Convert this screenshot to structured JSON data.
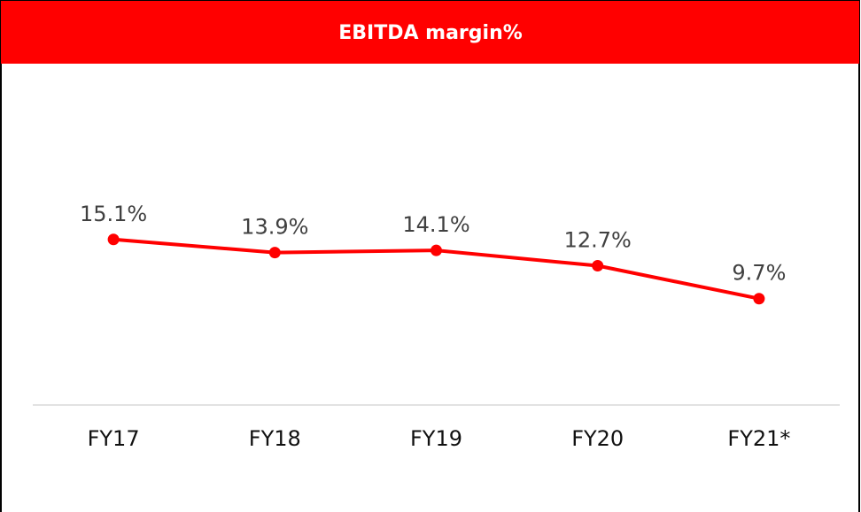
{
  "chart_data": {
    "type": "line",
    "title": "EBITDA margin%",
    "categories": [
      "FY17",
      "FY18",
      "FY19",
      "FY20",
      "FY21*"
    ],
    "values": [
      15.1,
      13.9,
      14.1,
      12.7,
      9.7
    ],
    "value_labels": [
      "15.1%",
      "13.9%",
      "14.1%",
      "12.7%",
      "9.7%"
    ],
    "color": "#ff0000",
    "ylim": [
      0,
      20
    ]
  }
}
